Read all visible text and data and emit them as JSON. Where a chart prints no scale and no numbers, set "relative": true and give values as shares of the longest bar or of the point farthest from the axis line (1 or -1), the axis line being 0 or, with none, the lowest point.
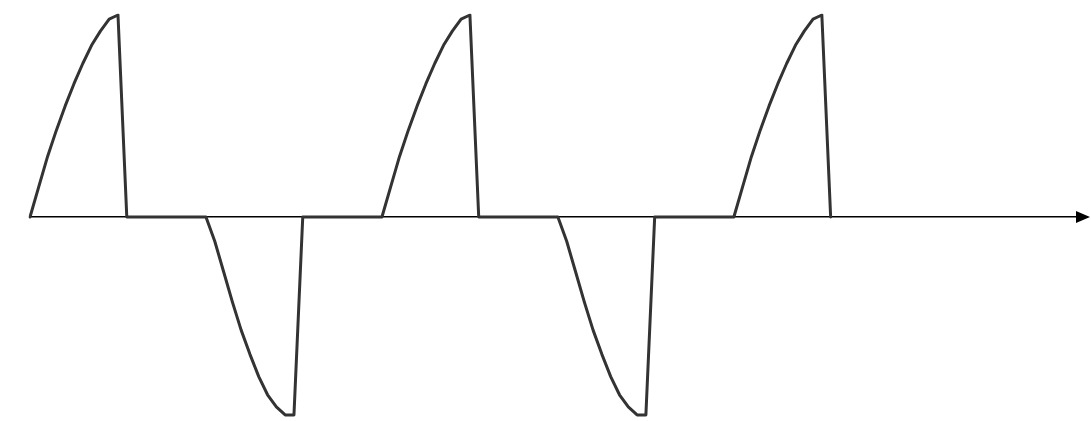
{
  "chart_data": {
    "type": "line",
    "relative": true,
    "marker": "none",
    "line_style": "solid",
    "categories": [
      null,
      null,
      null,
      null,
      null,
      null,
      null,
      null,
      null,
      null,
      null,
      null,
      null,
      null,
      null,
      null,
      null,
      null,
      null,
      null,
      null,
      null,
      null,
      null,
      null,
      null,
      null,
      null,
      null,
      null,
      null,
      null,
      null,
      null,
      null,
      null,
      null,
      null,
      null,
      null,
      null,
      null,
      null,
      null,
      null,
      null,
      null,
      null,
      null,
      null,
      null,
      null,
      null,
      null,
      null,
      null,
      null,
      null,
      null,
      null,
      null,
      null,
      null,
      null,
      null,
      null,
      null,
      null,
      null,
      null,
      null,
      null,
      null,
      null,
      null,
      null,
      null,
      null,
      null,
      null,
      null,
      null,
      null,
      null,
      null,
      null,
      null,
      null,
      null,
      null,
      null,
      null,
      null,
      null,
      null,
      null,
      null,
      null,
      null,
      null,
      null,
      null,
      null,
      null,
      null,
      null,
      null,
      null,
      null,
      null,
      null,
      null,
      null,
      null,
      null,
      null,
      null,
      null,
      null,
      null
    ],
    "series": [
      {
        "color": "#333333",
        "values": [
          0,
          0.15,
          0.3,
          0.43,
          0.55,
          0.66,
          0.76,
          0.85,
          0.92,
          0.98,
          1,
          0,
          0,
          0,
          0,
          0,
          0,
          0,
          0,
          0,
          0,
          -0.12,
          -0.27,
          -0.42,
          -0.56,
          -0.68,
          -0.79,
          -0.88,
          -0.94,
          -0.98,
          -0.98,
          0,
          0,
          0,
          0,
          0,
          0,
          0,
          0,
          0,
          0,
          0.15,
          0.3,
          0.43,
          0.55,
          0.66,
          0.76,
          0.85,
          0.92,
          0.98,
          1,
          0,
          0,
          0,
          0,
          0,
          0,
          0,
          0,
          0,
          0,
          -0.12,
          -0.27,
          -0.42,
          -0.56,
          -0.68,
          -0.79,
          -0.88,
          -0.94,
          -0.98,
          -0.98,
          0,
          0,
          0,
          0,
          0,
          0,
          0,
          0,
          0,
          0,
          0.15,
          0.3,
          0.43,
          0.55,
          0.66,
          0.76,
          0.85,
          0.92,
          0.98,
          1,
          0,
          null,
          null,
          null,
          null,
          null,
          null,
          null,
          null,
          null,
          null,
          null,
          null,
          null,
          null,
          null,
          null,
          null,
          null,
          null,
          null,
          null,
          null,
          null,
          null,
          null,
          null,
          null,
          null
        ]
      }
    ]
  }
}
